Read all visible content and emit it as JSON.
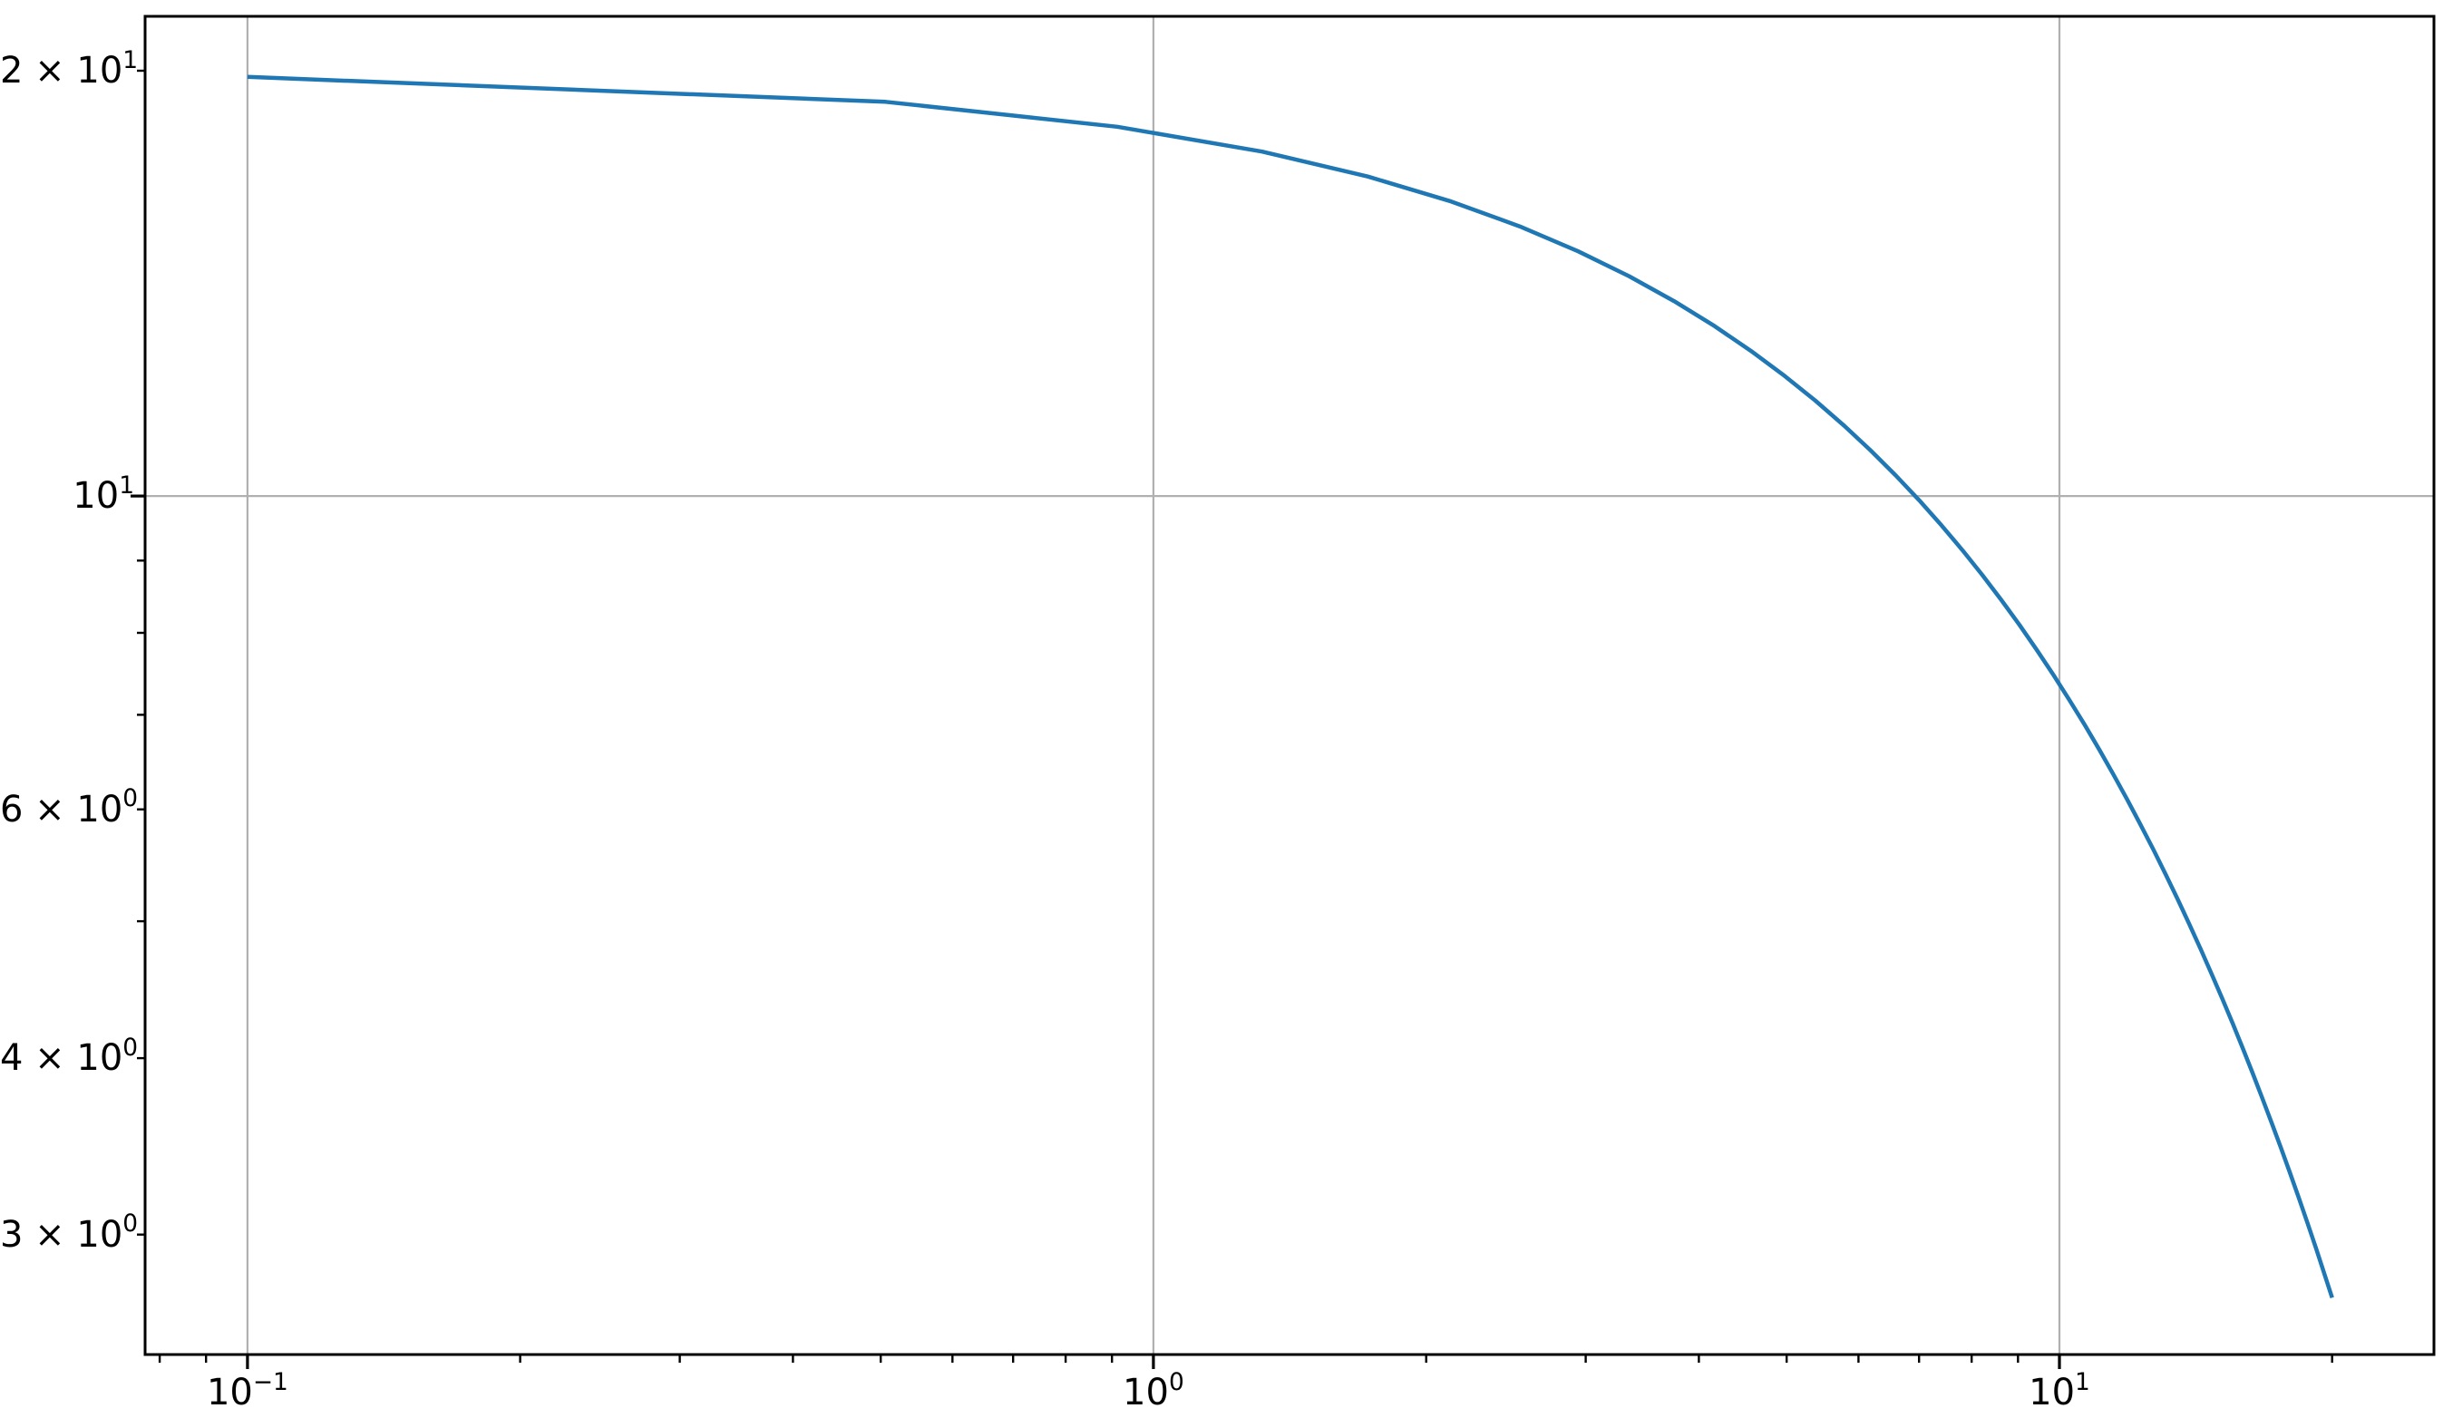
{
  "figure": {
    "background": "#ffffff",
    "title": "",
    "xlabel": "",
    "ylabel": ""
  },
  "chart_data": {
    "type": "line",
    "x_scale": "log",
    "y_scale": "log",
    "title": "",
    "xlabel": "",
    "ylabel": "",
    "legend": null,
    "grid": "major",
    "grid_color": "#b0b0b0",
    "spine_color": "#000000",
    "tick_color": "#000000",
    "xlim": [
      0.07709,
      25.906
    ],
    "ylim": [
      2.4674,
      21.855
    ],
    "x_gridlines": [
      0.1,
      1,
      10
    ],
    "y_gridlines": [
      10
    ],
    "x_tick_labels": [
      {
        "value": 0.1,
        "text": "10",
        "exp": "−1"
      },
      {
        "value": 1,
        "text": "10",
        "exp": "0"
      },
      {
        "value": 10,
        "text": "10",
        "exp": "1"
      }
    ],
    "x_major_ticks": [
      0.1,
      1,
      10
    ],
    "x_minor_ticks": [
      0.08,
      0.09,
      0.2,
      0.3,
      0.4,
      0.5,
      0.6,
      0.7,
      0.8,
      0.9,
      2,
      3,
      4,
      5,
      6,
      7,
      8,
      9,
      20
    ],
    "y_tick_labels": [
      {
        "value": 20,
        "text": "2 × 10",
        "exp": "1"
      },
      {
        "value": 10,
        "text": "10",
        "exp": "1"
      },
      {
        "value": 6,
        "text": "6 × 10",
        "exp": "0"
      },
      {
        "value": 4,
        "text": "4 × 10",
        "exp": "0"
      },
      {
        "value": 3,
        "text": "3 × 10",
        "exp": "0"
      }
    ],
    "y_major_ticks": [
      10
    ],
    "y_minor_ticks": [
      20,
      9,
      8,
      7,
      6,
      5,
      4,
      3
    ],
    "series": [
      {
        "name": "series-1",
        "color": "#1f77b4",
        "line_width": 4.5,
        "x": [
          0.1,
          0.506,
          0.912,
          1.318,
          1.724,
          2.131,
          2.537,
          2.943,
          3.349,
          3.755,
          4.161,
          4.567,
          4.973,
          5.38,
          5.786,
          6.192,
          6.598,
          7.004,
          7.41,
          7.816,
          8.222,
          8.629,
          9.035,
          9.441,
          9.847,
          10.253,
          10.659,
          11.065,
          11.471,
          11.878,
          12.284,
          12.69,
          13.096,
          13.502,
          13.908,
          14.314,
          14.72,
          15.127,
          15.533,
          15.939,
          16.345,
          16.751,
          17.157,
          17.563,
          17.969,
          18.376,
          18.782,
          19.188,
          19.594,
          20.0
        ],
        "y": [
          19.801,
          19.013,
          18.256,
          17.53,
          16.832,
          16.162,
          15.519,
          14.901,
          14.308,
          13.739,
          13.192,
          12.667,
          12.163,
          11.679,
          11.214,
          10.768,
          10.339,
          9.928,
          9.533,
          9.153,
          8.789,
          8.439,
          8.104,
          7.781,
          7.471,
          7.174,
          6.889,
          6.615,
          6.351,
          6.098,
          5.856,
          5.623,
          5.399,
          5.184,
          4.978,
          4.78,
          4.59,
          4.407,
          4.232,
          4.063,
          3.901,
          3.746,
          3.597,
          3.454,
          3.317,
          3.185,
          3.058,
          2.936,
          2.819,
          2.707
        ]
      }
    ]
  }
}
